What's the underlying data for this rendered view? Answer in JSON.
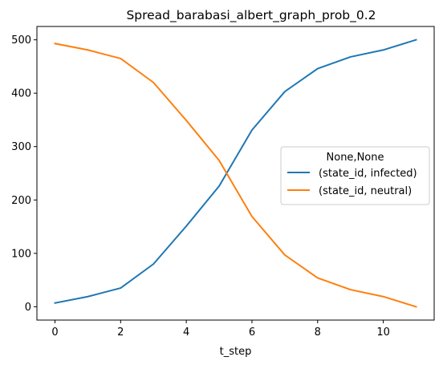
{
  "chart_data": {
    "type": "line",
    "title": "Spread_barabasi_albert_graph_prob_0.2",
    "xlabel": "t_step",
    "ylabel": "",
    "x": [
      0,
      1,
      2,
      3,
      4,
      5,
      6,
      7,
      8,
      9,
      10,
      11
    ],
    "xlim": [
      -0.55,
      11.55
    ],
    "ylim": [
      -25,
      525
    ],
    "xticks": [
      0,
      2,
      4,
      6,
      8,
      10
    ],
    "yticks": [
      0,
      100,
      200,
      300,
      400,
      500
    ],
    "grid": false,
    "legend": {
      "title": "None,None",
      "placement": "center-right"
    },
    "series": [
      {
        "name": "(state_id, infected)",
        "color": "#1f77b4",
        "values": [
          7,
          19,
          35,
          80,
          151,
          226,
          331,
          403,
          446,
          468,
          481,
          500
        ]
      },
      {
        "name": "(state_id, neutral)",
        "color": "#ff7f0e",
        "values": [
          493,
          481,
          465,
          420,
          349,
          274,
          169,
          97,
          54,
          32,
          19,
          0
        ]
      }
    ]
  }
}
